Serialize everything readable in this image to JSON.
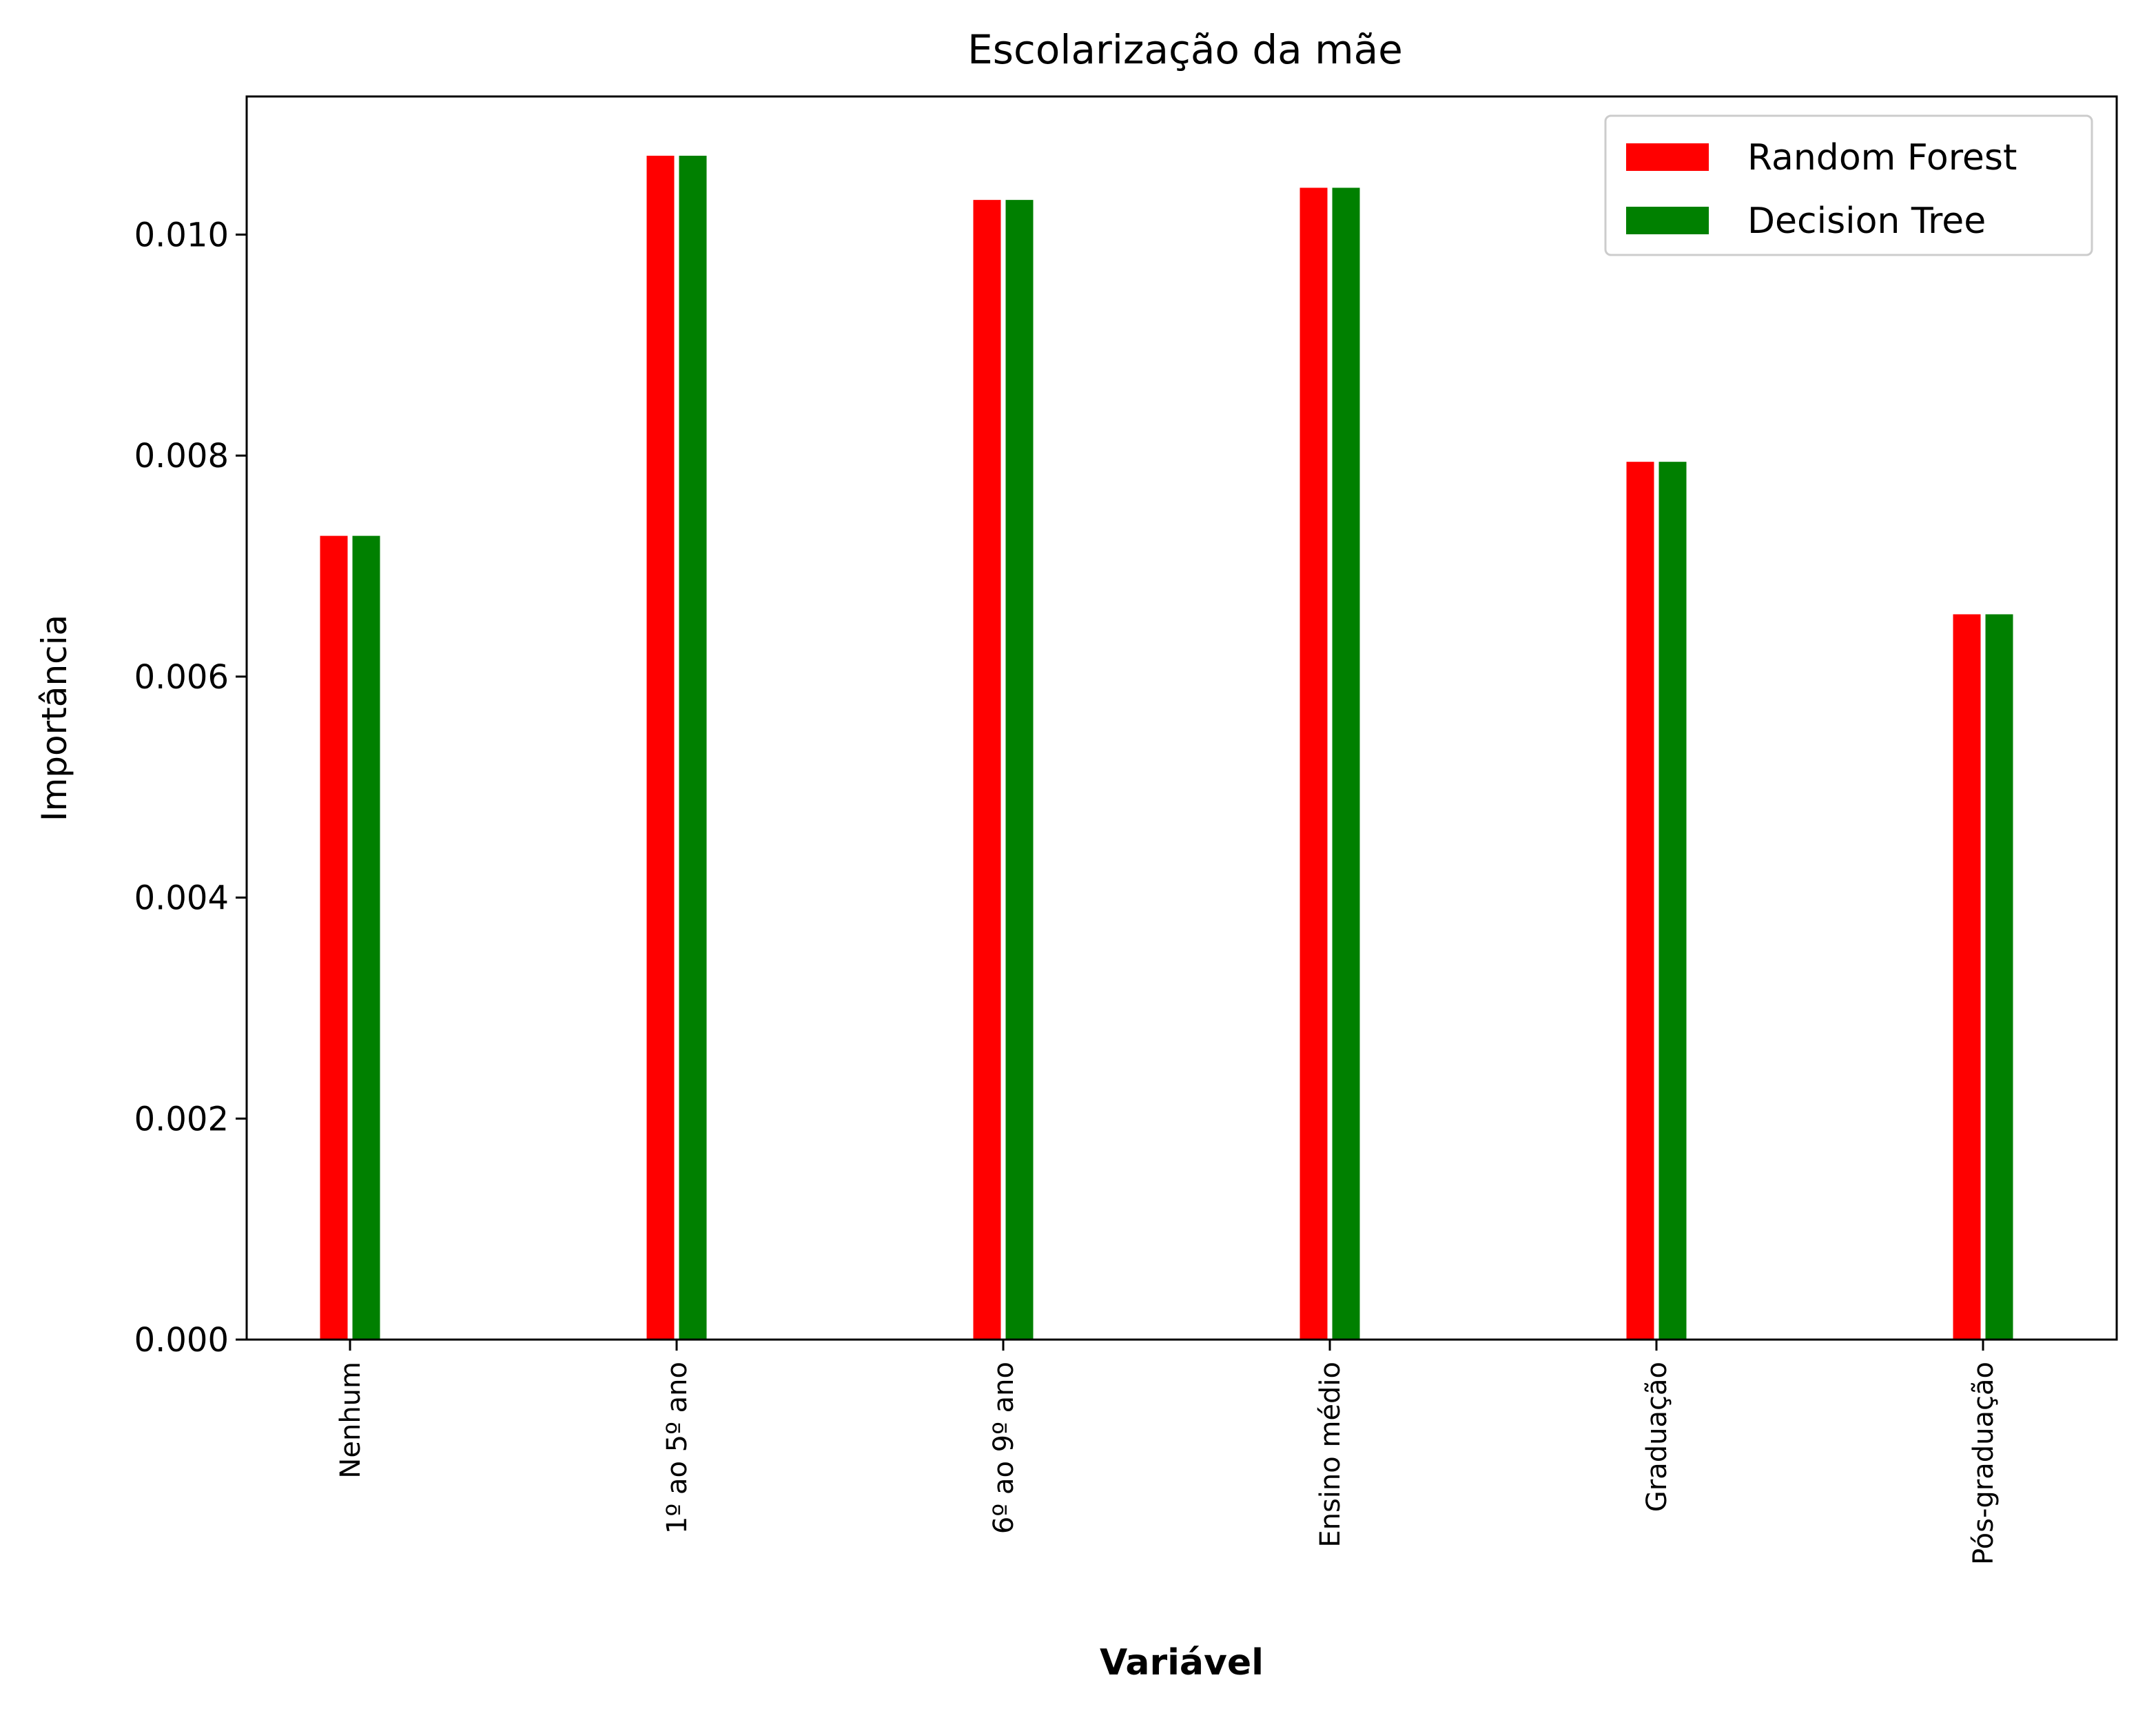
{
  "chart_data": {
    "type": "bar",
    "title": "Escolarização da mãe",
    "xlabel": "Variável",
    "ylabel": "Importância",
    "categories": [
      "Nenhum",
      "1º ao 5º ano",
      "6º ao 9º ano",
      "Ensino médio",
      "Graduação",
      "Pós-graduação"
    ],
    "series": [
      {
        "name": "Random Forest",
        "color": "#ff0000",
        "values": [
          0.00728,
          0.01072,
          0.01032,
          0.01043,
          0.00795,
          0.00657
        ]
      },
      {
        "name": "Decision Tree",
        "color": "#008000",
        "values": [
          0.00728,
          0.01072,
          0.01032,
          0.01043,
          0.00795,
          0.00657
        ]
      }
    ],
    "ylim": [
      0,
      0.01125
    ],
    "yticks": [
      0.0,
      0.002,
      0.004,
      0.006,
      0.008,
      0.01
    ],
    "ytick_labels": [
      "0.000",
      "0.002",
      "0.004",
      "0.006",
      "0.008",
      "0.010"
    ],
    "grid": false,
    "legend_position": "top-right"
  }
}
